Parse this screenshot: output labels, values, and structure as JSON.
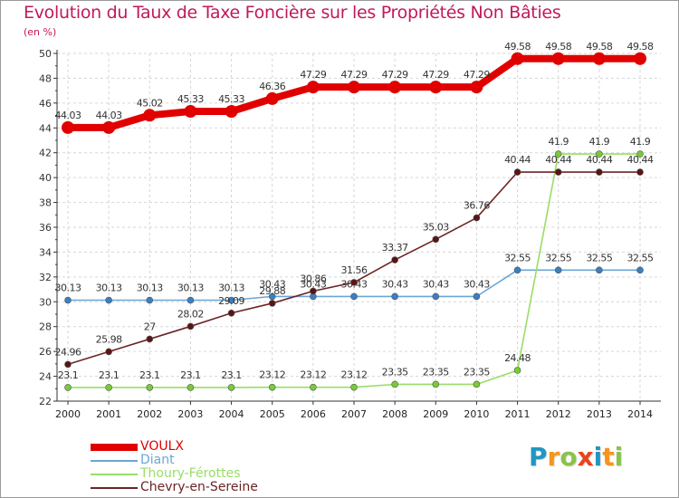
{
  "title": "Evolution du Taux de Taxe Foncière sur les Propriétés Non Bâties",
  "unit": "(en %)",
  "logo": {
    "letters": [
      "P",
      "r",
      "o",
      "x",
      "i",
      "t",
      "i"
    ],
    "colors": [
      "#2196c4",
      "#f7941d",
      "#8bc34a",
      "#e8451e",
      "#2196c4",
      "#f7941d",
      "#8bc34a"
    ]
  },
  "chart_data": {
    "type": "line",
    "title": "Evolution du Taux de Taxe Foncière sur les Propriétés Non Bâties",
    "ylabel": "(en %)",
    "xlabel": "",
    "ylim": [
      22,
      50
    ],
    "yticks": [
      22,
      24,
      26,
      28,
      30,
      32,
      34,
      36,
      38,
      40,
      42,
      44,
      46,
      48,
      50
    ],
    "x": [
      "2000",
      "2001",
      "2002",
      "2003",
      "2004",
      "2005",
      "2006",
      "2007",
      "2008",
      "2009",
      "2010",
      "2011",
      "2012",
      "2013",
      "2014"
    ],
    "grid": true,
    "legend_position": "bottom-left",
    "series": [
      {
        "name": "VOULX",
        "color": "#e00000",
        "dot": "#e00000",
        "labels": [
          "44.03",
          "44.03",
          "45.02",
          "45.33",
          "45.33",
          "46.36",
          "47.29",
          "47.29",
          "47.29",
          "47.29",
          "47.29",
          "49.58",
          "49.58",
          "49.58",
          "49.58"
        ],
        "values": [
          44.03,
          44.03,
          45.02,
          45.33,
          45.33,
          46.36,
          47.29,
          47.29,
          47.29,
          47.29,
          47.29,
          49.58,
          49.58,
          49.58,
          49.58
        ]
      },
      {
        "name": "Diant",
        "color": "#6aa6d6",
        "dot": "#3b7fc1",
        "labels": [
          "30.13",
          "30.13",
          "30.13",
          "30.13",
          "30.13",
          "30.43",
          "30.43",
          "30.43",
          "30.43",
          "30.43",
          "30.43",
          "32.55",
          "32.55",
          "32.55",
          "32.55"
        ],
        "values": [
          30.13,
          30.13,
          30.13,
          30.13,
          30.13,
          30.43,
          30.43,
          30.43,
          30.43,
          30.43,
          30.43,
          32.55,
          32.55,
          32.55,
          32.55
        ]
      },
      {
        "name": "Thoury-Férottes",
        "color": "#99dd66",
        "dot": "#77cc33",
        "labels": [
          "23.1",
          "23.1",
          "23.1",
          "23.1",
          "23.1",
          "23.12",
          "23.12",
          "23.12",
          "23.35",
          "23.35",
          "23.35",
          "24.48",
          "41.9",
          "41.9",
          "41.9"
        ],
        "values": [
          23.1,
          23.1,
          23.1,
          23.1,
          23.1,
          23.12,
          23.12,
          23.12,
          23.35,
          23.35,
          23.35,
          24.48,
          41.9,
          41.9,
          41.9
        ]
      },
      {
        "name": "Chevry-en-Sereine",
        "color": "#6b2424",
        "dot": "#5a1414",
        "labels": [
          "24.96",
          "25.98",
          "27",
          "28.02",
          "29.09",
          "29.88",
          "30.86",
          "31.56",
          "33.37",
          "35.03",
          "36.76",
          "40.44",
          "40.44",
          "40.44",
          "40.44"
        ],
        "values": [
          24.96,
          25.98,
          27.0,
          28.02,
          29.09,
          29.88,
          30.86,
          31.56,
          33.37,
          35.03,
          36.76,
          40.44,
          40.44,
          40.44,
          40.44
        ]
      }
    ]
  }
}
